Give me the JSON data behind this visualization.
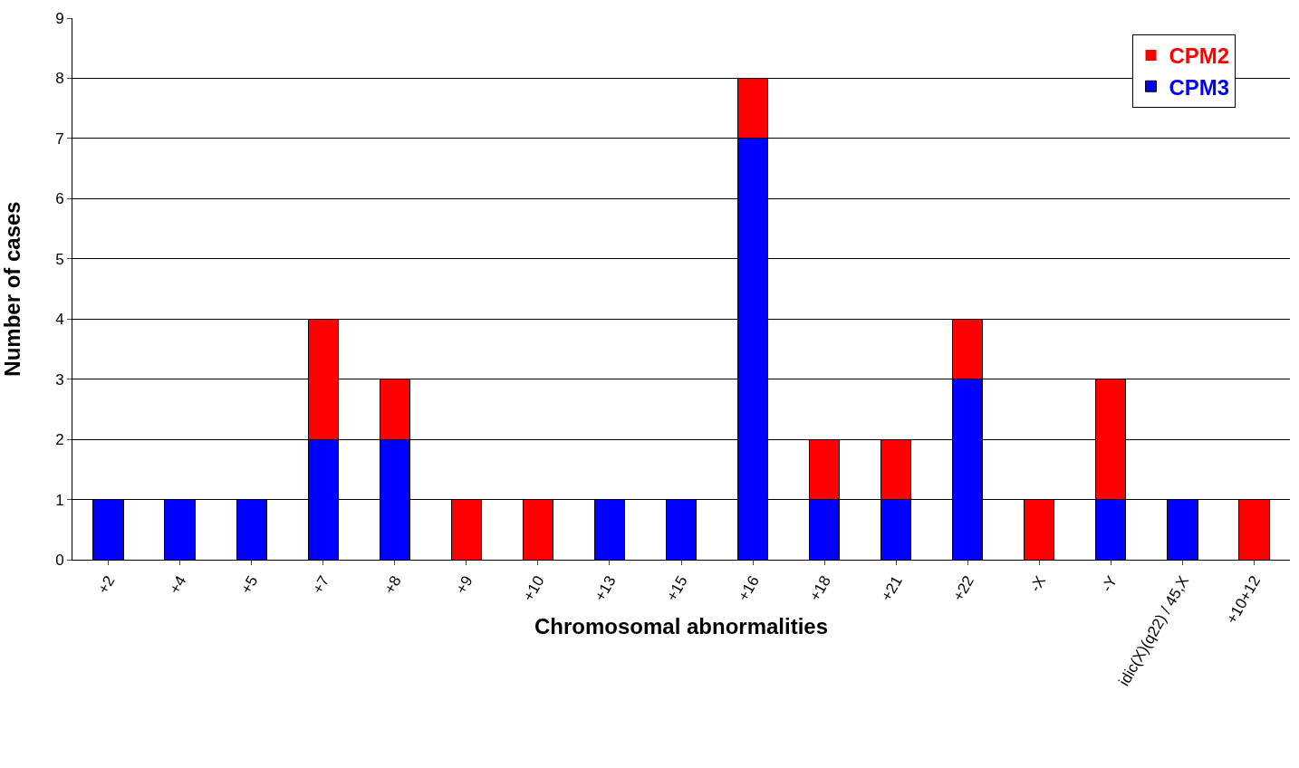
{
  "chart_data": {
    "type": "bar",
    "stacked": true,
    "xlabel": "Chromosomal abnormalities",
    "ylabel": "Number of cases",
    "categories": [
      "+2",
      "+4",
      "+5",
      "+7",
      "+8",
      "+9",
      "+10",
      "+13",
      "+15",
      "+16",
      "+18",
      "+21",
      "+22",
      "-X",
      "-Y",
      "idic(X)(q22) / 45,X",
      "+10+12"
    ],
    "series": [
      {
        "name": "CPM3",
        "color": "#0000ff",
        "values": [
          1,
          1,
          1,
          2,
          2,
          0,
          0,
          1,
          1,
          7,
          1,
          1,
          3,
          0,
          1,
          1,
          0
        ]
      },
      {
        "name": "CPM2",
        "color": "#ff0000",
        "values": [
          0,
          0,
          0,
          2,
          1,
          1,
          1,
          0,
          0,
          1,
          1,
          1,
          1,
          1,
          2,
          0,
          1
        ]
      }
    ],
    "ylim": [
      0,
      9
    ],
    "yticks": [
      0,
      1,
      2,
      3,
      4,
      5,
      6,
      7,
      8,
      9
    ],
    "grid": "y",
    "legend": "top right"
  }
}
